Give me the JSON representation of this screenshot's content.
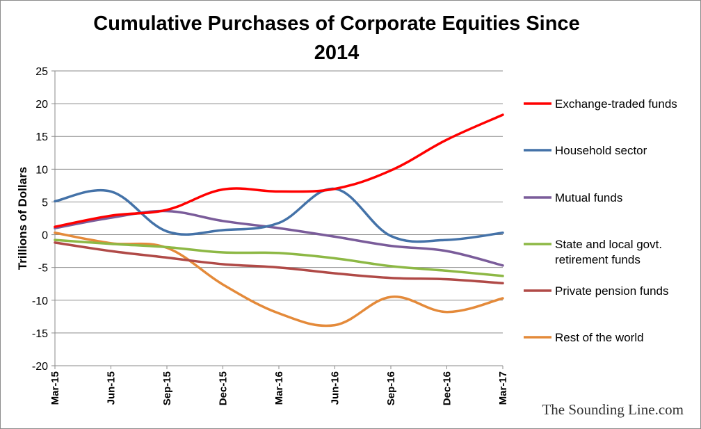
{
  "chart_data": {
    "type": "line",
    "title_lines": [
      "Cumulative Purchases of Corporate Equities Since",
      "2014"
    ],
    "ylabel": "Trillions of Dollars",
    "xlabel": "",
    "ylim": [
      -20,
      25
    ],
    "yticks": [
      25,
      20,
      15,
      10,
      5,
      0,
      -5,
      -10,
      -15,
      -20
    ],
    "ytick_labels": [
      "25",
      "20",
      "15",
      "10",
      "5",
      "0",
      "-5",
      "-10",
      "-15",
      "-20"
    ],
    "categories": [
      "Mar-15",
      "Jun-15",
      "Sep-15",
      "Dec-15",
      "Mar-16",
      "Jun-16",
      "Sep-16",
      "Dec-16",
      "Mar-17"
    ],
    "grid": true,
    "legend_position": "right",
    "series": [
      {
        "name": "Exchange-traded funds",
        "color": "#ff0000",
        "values": [
          1.2,
          2.9,
          3.8,
          6.9,
          6.6,
          7.0,
          9.8,
          14.5,
          18.3
        ]
      },
      {
        "name": "Household sector",
        "color": "#4472a8",
        "values": [
          5.1,
          6.6,
          0.5,
          0.7,
          1.8,
          7.0,
          -0.2,
          -0.8,
          0.3
        ]
      },
      {
        "name": "Mutual funds",
        "color": "#7a5c9a",
        "values": [
          1.0,
          2.6,
          3.6,
          2.1,
          1.0,
          -0.3,
          -1.7,
          -2.5,
          -4.7
        ]
      },
      {
        "name": "State and local govt. retirement funds",
        "legend_lines": [
          "State and local govt.",
          "retirement funds"
        ],
        "color": "#8db845",
        "values": [
          -0.8,
          -1.4,
          -1.9,
          -2.7,
          -2.8,
          -3.6,
          -4.8,
          -5.5,
          -6.3
        ]
      },
      {
        "name": "Private pension funds",
        "color": "#b04a47",
        "values": [
          -1.2,
          -2.5,
          -3.5,
          -4.5,
          -5.0,
          -5.9,
          -6.6,
          -6.8,
          -7.4
        ]
      },
      {
        "name": "Rest of the world",
        "color": "#e48a3a",
        "values": [
          0.3,
          -1.3,
          -2.0,
          -7.6,
          -12.0,
          -13.8,
          -9.5,
          -11.8,
          -9.7
        ]
      }
    ]
  },
  "watermark": "The Sounding Line.com"
}
